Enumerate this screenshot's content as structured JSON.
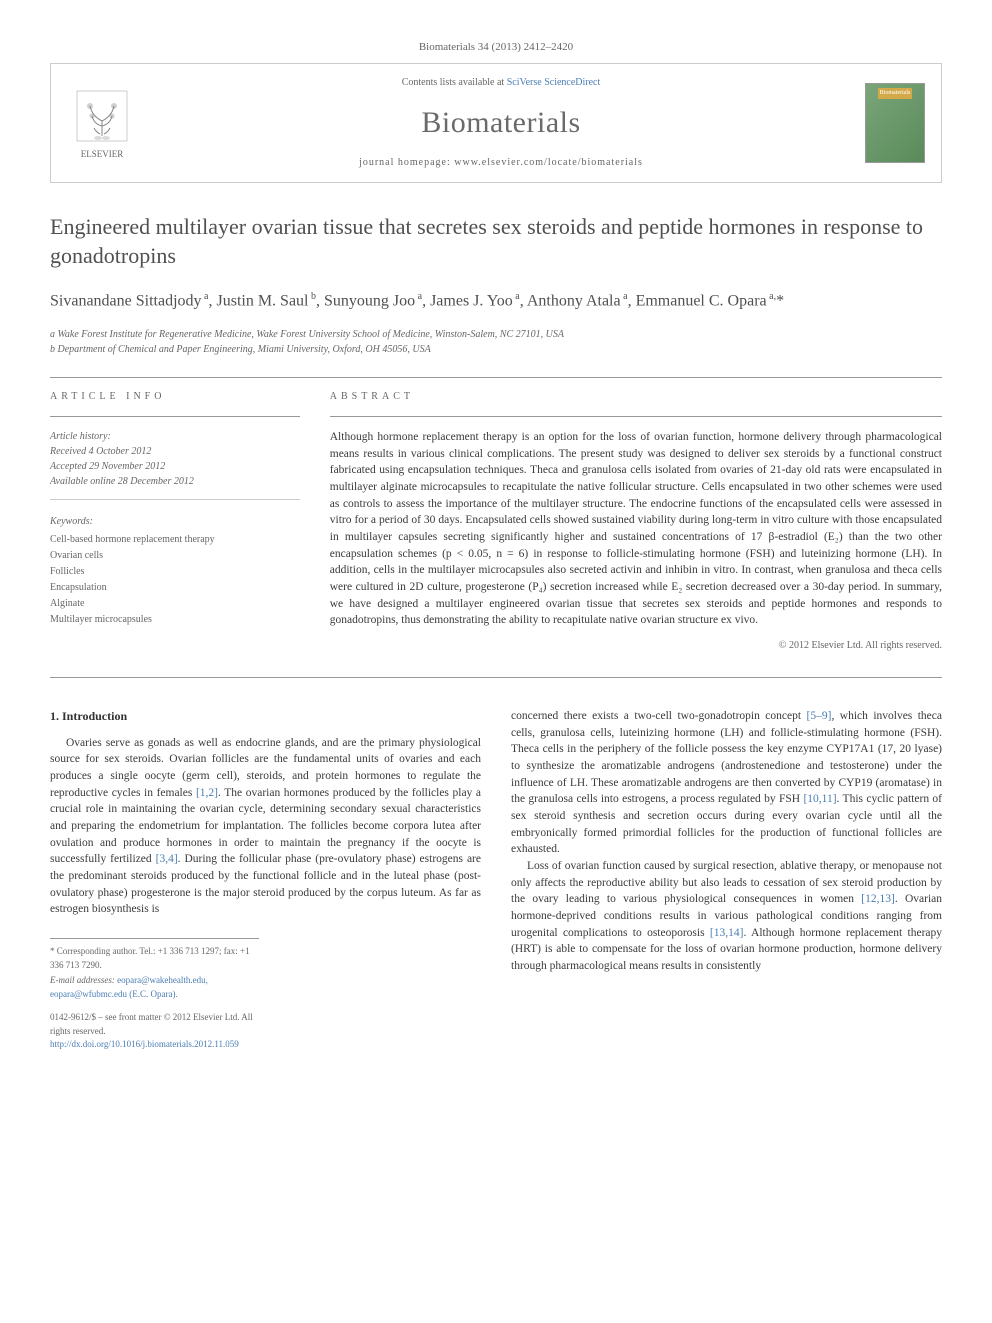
{
  "citation": "Biomaterials 34 (2013) 2412–2420",
  "header": {
    "publisher": "ELSEVIER",
    "contents_prefix": "Contents lists available at ",
    "contents_link": "SciVerse ScienceDirect",
    "journal_name": "Biomaterials",
    "homepage_prefix": "journal homepage: ",
    "homepage_url": "www.elsevier.com/locate/biomaterials",
    "cover_label": "Biomaterials"
  },
  "article": {
    "title": "Engineered multilayer ovarian tissue that secretes sex steroids and peptide hormones in response to gonadotropins",
    "authors_html": "Sivanandane Sittadjody<sup>a</sup>, Justin M. Saul<sup>b</sup>, Sunyoung Joo<sup>a</sup>, James J. Yoo<sup>a</sup>, Anthony Atala<sup>a</sup>, Emmanuel C. Opara<sup>a,*</sup>",
    "affiliations": [
      "a Wake Forest Institute for Regenerative Medicine, Wake Forest University School of Medicine, Winston-Salem, NC 27101, USA",
      "b Department of Chemical and Paper Engineering, Miami University, Oxford, OH 45056, USA"
    ]
  },
  "info": {
    "label": "ARTICLE INFO",
    "history_label": "Article history:",
    "history": [
      "Received 4 October 2012",
      "Accepted 29 November 2012",
      "Available online 28 December 2012"
    ],
    "keywords_label": "Keywords:",
    "keywords": [
      "Cell-based hormone replacement therapy",
      "Ovarian cells",
      "Follicles",
      "Encapsulation",
      "Alginate",
      "Multilayer microcapsules"
    ]
  },
  "abstract": {
    "label": "ABSTRACT",
    "text": "Although hormone replacement therapy is an option for the loss of ovarian function, hormone delivery through pharmacological means results in various clinical complications. The present study was designed to deliver sex steroids by a functional construct fabricated using encapsulation techniques. Theca and granulosa cells isolated from ovaries of 21-day old rats were encapsulated in multilayer alginate microcapsules to recapitulate the native follicular structure. Cells encapsulated in two other schemes were used as controls to assess the importance of the multilayer structure. The endocrine functions of the encapsulated cells were assessed in vitro for a period of 30 days. Encapsulated cells showed sustained viability during long-term in vitro culture with those encapsulated in multilayer capsules secreting significantly higher and sustained concentrations of 17 β-estradiol (E₂) than the two other encapsulation schemes (p < 0.05, n = 6) in response to follicle-stimulating hormone (FSH) and luteinizing hormone (LH). In addition, cells in the multilayer microcapsules also secreted activin and inhibin in vitro. In contrast, when granulosa and theca cells were cultured in 2D culture, progesterone (P₄) secretion increased while E₂ secretion decreased over a 30-day period. In summary, we have designed a multilayer engineered ovarian tissue that secretes sex steroids and peptide hormones and responds to gonadotropins, thus demonstrating the ability to recapitulate native ovarian structure ex vivo.",
    "copyright": "© 2012 Elsevier Ltd. All rights reserved."
  },
  "body": {
    "section_num": "1.",
    "section_title": "Introduction",
    "col1": "Ovaries serve as gonads as well as endocrine glands, and are the primary physiological source for sex steroids. Ovarian follicles are the fundamental units of ovaries and each produces a single oocyte (germ cell), steroids, and protein hormones to regulate the reproductive cycles in females [1,2]. The ovarian hormones produced by the follicles play a crucial role in maintaining the ovarian cycle, determining secondary sexual characteristics and preparing the endometrium for implantation. The follicles become corpora lutea after ovulation and produce hormones in order to maintain the pregnancy if the oocyte is successfully fertilized [3,4]. During the follicular phase (pre-ovulatory phase) estrogens are the predominant steroids produced by the functional follicle and in the luteal phase (post-ovulatory phase) progesterone is the major steroid produced by the corpus luteum. As far as estrogen biosynthesis is",
    "col2_p1": "concerned there exists a two-cell two-gonadotropin concept [5–9], which involves theca cells, granulosa cells, luteinizing hormone (LH) and follicle-stimulating hormone (FSH). Theca cells in the periphery of the follicle possess the key enzyme CYP17A1 (17, 20 lyase) to synthesize the aromatizable androgens (androstenedione and testosterone) under the influence of LH. These aromatizable androgens are then converted by CYP19 (aromatase) in the granulosa cells into estrogens, a process regulated by FSH [10,11]. This cyclic pattern of sex steroid synthesis and secretion occurs during every ovarian cycle until all the embryonically formed primordial follicles for the production of functional follicles are exhausted.",
    "col2_p2": "Loss of ovarian function caused by surgical resection, ablative therapy, or menopause not only affects the reproductive ability but also leads to cessation of sex steroid production by the ovary leading to various physiological consequences in women [12,13]. Ovarian hormone-deprived conditions results in various pathological conditions ranging from urogenital complications to osteoporosis [13,14]. Although hormone replacement therapy (HRT) is able to compensate for the loss of ovarian hormone production, hormone delivery through pharmacological means results in consistently"
  },
  "footer": {
    "corresponding": "* Corresponding author. Tel.: +1 336 713 1297; fax: +1 336 713 7290.",
    "email_label": "E-mail addresses: ",
    "emails": "eopara@wakehealth.edu, eopara@wfubmc.edu (E.C. Opara).",
    "issn": "0142-9612/$ – see front matter © 2012 Elsevier Ltd. All rights reserved.",
    "doi": "http://dx.doi.org/10.1016/j.biomaterials.2012.11.059"
  },
  "refs": {
    "r1": "[1,2]",
    "r2": "[3,4]",
    "r3": "[5–9]",
    "r4": "[10,11]",
    "r5": "[12,13]",
    "r6": "[13,14]"
  },
  "colors": {
    "text": "#333333",
    "muted": "#666666",
    "link": "#4a7db5",
    "border": "#cccccc",
    "divider": "#999999",
    "cover_bg1": "#7aa67a",
    "cover_bg2": "#5a8a5a",
    "cover_badge": "#d4a94a"
  }
}
